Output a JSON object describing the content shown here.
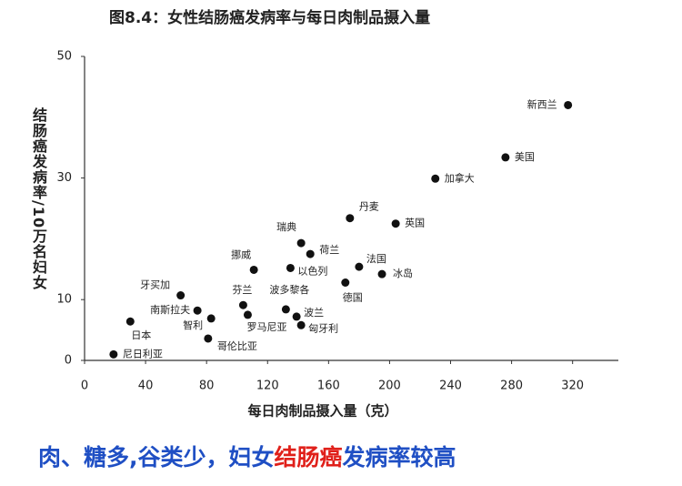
{
  "chart_data": {
    "type": "scatter",
    "title": "图8.4：女性结肠癌发病率与每日肉制品摄入量",
    "x_label": "每日肉制品摄入量（克）",
    "y_label": "结肠癌发病率/10万名妇女",
    "point_labels": [
      "新西兰",
      "美国",
      "加拿大",
      "丹麦",
      "英国",
      "瑞典",
      "荷兰",
      "法国",
      "以色列",
      "挪威",
      "冰岛",
      "德国",
      "牙买加",
      "芬兰",
      "波多黎各",
      "南斯拉夫",
      "罗马尼亚",
      "波兰",
      "智利",
      "日本",
      "匈牙利",
      "哥伦比亚",
      "尼日利亚"
    ],
    "x": [
      317,
      276,
      230,
      174,
      204,
      142,
      148,
      180,
      135,
      111,
      195,
      171,
      63,
      104,
      132,
      74,
      107,
      139,
      83,
      30,
      142,
      81,
      19
    ],
    "values": [
      42,
      33.4,
      29.9,
      23.4,
      22.5,
      19.3,
      17.5,
      15.4,
      15.2,
      14.9,
      14.2,
      12.8,
      10.7,
      9.1,
      8.4,
      8.2,
      7.5,
      7.2,
      6.9,
      6.4,
      5.8,
      3.6,
      1
    ],
    "color": "#111111",
    "xlim": [
      0,
      350
    ],
    "xticks": [
      0,
      40,
      80,
      120,
      160,
      200,
      240,
      280,
      320
    ],
    "ylim": [
      0,
      50
    ],
    "yticks": [
      0,
      10,
      30,
      50
    ],
    "grid": false
  },
  "caption": [
    {
      "text": "肉、糖多,谷类少，妇女",
      "color": "#1f4fc4"
    },
    {
      "text": "结肠癌",
      "color": "#e0201a"
    },
    {
      "text": "发病率较高",
      "color": "#1f4fc4"
    }
  ]
}
